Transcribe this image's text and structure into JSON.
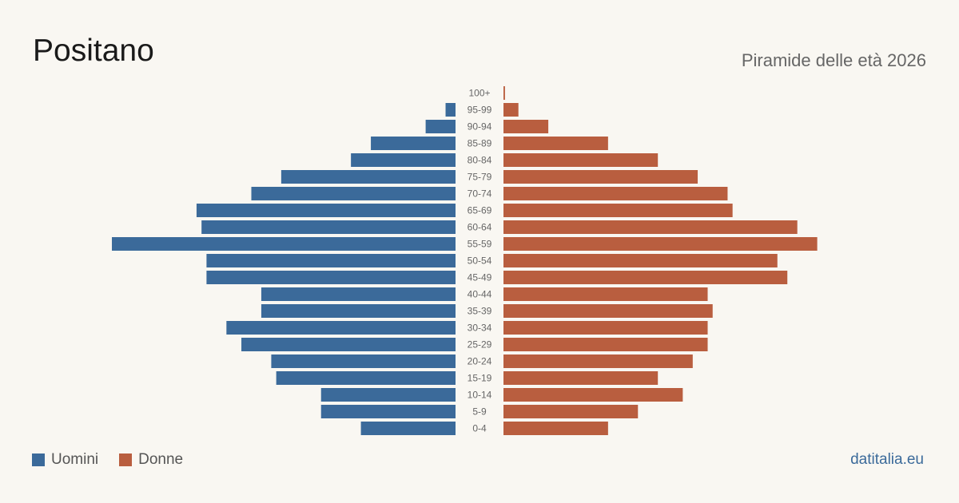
{
  "title": "Positano",
  "subtitle": "Piramide delle età 2026",
  "source": "datitalia.eu",
  "colors": {
    "men": "#3b6a9a",
    "women": "#b95e3f",
    "axis_label": "#666666",
    "background": "#f9f7f2"
  },
  "chart_data": {
    "type": "bar",
    "orientation": "horizontal-pyramid",
    "categories": [
      "100+",
      "95-99",
      "90-94",
      "85-89",
      "80-84",
      "75-79",
      "70-74",
      "65-69",
      "60-64",
      "55-59",
      "50-54",
      "45-49",
      "40-44",
      "35-39",
      "30-34",
      "25-29",
      "20-24",
      "15-19",
      "10-14",
      "5-9",
      "0-4"
    ],
    "series": [
      {
        "name": "Uomini",
        "values": [
          0,
          2,
          6,
          17,
          21,
          35,
          41,
          52,
          51,
          69,
          50,
          50,
          39,
          39,
          46,
          43,
          37,
          36,
          27,
          27,
          19
        ]
      },
      {
        "name": "Donne",
        "values": [
          0.3,
          3,
          9,
          21,
          31,
          39,
          45,
          46,
          59,
          63,
          55,
          57,
          41,
          42,
          41,
          41,
          38,
          31,
          36,
          27,
          21
        ]
      }
    ],
    "legend": "bottom-left",
    "grid": false
  }
}
